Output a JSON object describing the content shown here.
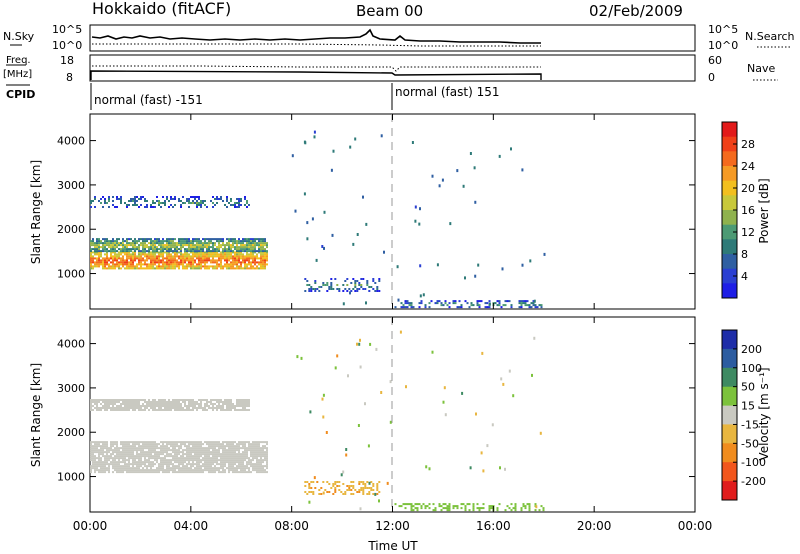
{
  "header": {
    "title": "Hokkaido (fitACF)",
    "beam": "Beam 00",
    "date": "02/Feb/2009"
  },
  "summary": {
    "nsky_label": "N.Sky",
    "nsky_ticks": [
      "10^5",
      "10^0"
    ],
    "nsearch_label": "N.Search",
    "nsearch_ticks": [
      "10^5",
      "10^0"
    ],
    "freq_label_line1": "Freq.",
    "freq_label_line2": "[MHz]",
    "freq_ticks": [
      "18",
      "8"
    ],
    "nave_label": "Nave",
    "nave_ticks": [
      "60",
      "0"
    ],
    "cpid_label": "CPID",
    "cpid_segments": [
      {
        "name": "normal (fast) -151",
        "start": 0,
        "end": 12
      },
      {
        "name": "normal (fast) 151",
        "start": 12,
        "end": 18
      }
    ]
  },
  "legends": {
    "power_label": "Power [dB]",
    "power_ticks": [
      "28",
      "24",
      "20",
      "16",
      "12",
      "8",
      "4"
    ],
    "power_colors": [
      "#e21a1a",
      "#f04018",
      "#f46a1e",
      "#f59a25",
      "#f2bf1f",
      "#c8c83a",
      "#8fb24e",
      "#4c9a74",
      "#2e7a78",
      "#2f5fa2",
      "#2a3fd2",
      "#1e1ee6"
    ],
    "velocity_label": "Velocity [m s⁻¹]",
    "velocity_ticks": [
      "200",
      "100",
      "50",
      "15",
      "-15",
      "-50",
      "-100",
      "-200"
    ],
    "velocity_colors": [
      "#1e2da8",
      "#2c5ca0",
      "#3e8a62",
      "#7cc23c",
      "#c9c9c1",
      "#e8b640",
      "#f08c1e",
      "#f2561c",
      "#e01c1c"
    ]
  },
  "chart_data": [
    {
      "type": "heatmap",
      "title": "",
      "quantity": "Power",
      "ylabel": "Slant Range [km]",
      "xlabel": "",
      "x_unit": "hours UT",
      "xlim": [
        0,
        24
      ],
      "ylim": [
        200,
        4600
      ],
      "yticks": [
        1000,
        2000,
        3000,
        4000
      ],
      "xticks": [
        0,
        4,
        8,
        12,
        16,
        20,
        24
      ],
      "grid": false,
      "marker_time": 12,
      "regions": [
        {
          "x_range": [
            0,
            7.0
          ],
          "y_range": [
            1100,
            1500
          ],
          "value_dB": 22
        },
        {
          "x_range": [
            0,
            7.0
          ],
          "y_range": [
            1500,
            1800
          ],
          "value_dB": 12
        },
        {
          "x_range": [
            0,
            6.3
          ],
          "y_range": [
            2500,
            2750
          ],
          "value_dB": 6
        },
        {
          "x_range": [
            8.5,
            11.5
          ],
          "y_range": [
            600,
            900
          ],
          "value_dB": 6
        },
        {
          "x_range": [
            12,
            18
          ],
          "y_range": [
            250,
            400
          ],
          "value_dB": 6
        }
      ]
    },
    {
      "type": "heatmap",
      "title": "",
      "quantity": "Velocity",
      "ylabel": "Slant Range [km]",
      "xlabel": "Time UT",
      "x_unit": "hours UT",
      "xlim": [
        0,
        24
      ],
      "ylim": [
        200,
        4600
      ],
      "yticks": [
        1000,
        2000,
        3000,
        4000
      ],
      "xticks": [
        0,
        4,
        8,
        12,
        16,
        20,
        24
      ],
      "xticklabels": [
        "00:00",
        "04:00",
        "08:00",
        "12:00",
        "16:00",
        "20:00",
        "00:00"
      ],
      "grid": false,
      "marker_time": 12,
      "regions": [
        {
          "x_range": [
            0,
            7.0
          ],
          "y_range": [
            1100,
            1800
          ],
          "value_ms": 0
        },
        {
          "x_range": [
            0,
            6.3
          ],
          "y_range": [
            2500,
            2750
          ],
          "value_ms": 0
        },
        {
          "x_range": [
            8.5,
            11.5
          ],
          "y_range": [
            600,
            900
          ],
          "value_ms": -40
        },
        {
          "x_range": [
            12,
            18
          ],
          "y_range": [
            250,
            400
          ],
          "value_ms": 30
        }
      ]
    }
  ]
}
